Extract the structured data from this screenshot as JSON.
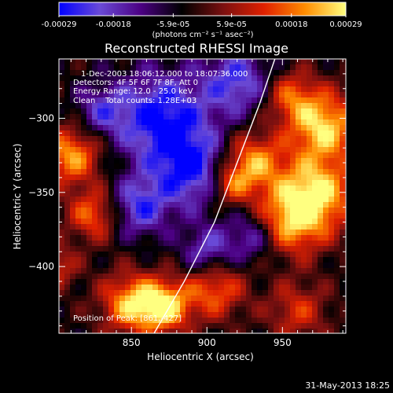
{
  "colorbar": {
    "tick_labels": [
      "-0.00029",
      "-0.00018",
      "-5.9e-05",
      "5.9e-05",
      "0.00018",
      "0.00029"
    ],
    "range": [
      -0.00029,
      0.00029
    ],
    "unit_label": "(photons cm⁻² s⁻¹ asec⁻²)",
    "colors": [
      "#0000ff",
      "#6a4ad6",
      "#4b0082",
      "#000000",
      "#7a1010",
      "#e02000",
      "#ff8c00",
      "#ffff80"
    ]
  },
  "chart_data": {
    "type": "heatmap",
    "title": "Reconstructed RHESSI Image",
    "xlabel": "Heliocentric X (arcsec)",
    "ylabel": "Heliocentric Y (arcsec)",
    "xlim": [
      802,
      992
    ],
    "ylim": [
      -445,
      -260
    ],
    "xticks": [
      850,
      900,
      950
    ],
    "yticks": [
      -300,
      -350,
      -400
    ],
    "annotations": [
      "1-Dec-2003 18:06:12.000 to 18:07:36.000",
      "Detectors: 4F 5F 6F 7F 8F, Att 0",
      "Energy Range: 12.0 - 25.0 keV",
      "Clean    Total counts: 1.28E+03"
    ],
    "position_label": "Position of Peak: [861,-427]",
    "peak": [
      861,
      -427
    ],
    "limb_curve": [
      [
        865,
        -445
      ],
      [
        885,
        -410
      ],
      [
        905,
        -370
      ],
      [
        920,
        -330
      ],
      [
        935,
        -290
      ],
      [
        945,
        -260
      ]
    ],
    "blobs": [
      {
        "x": 977,
        "y": -305,
        "v": 1.0,
        "s": 16
      },
      {
        "x": 972,
        "y": -350,
        "v": 1.0,
        "s": 18
      },
      {
        "x": 955,
        "y": -370,
        "v": 0.8,
        "s": 16
      },
      {
        "x": 930,
        "y": -330,
        "v": 0.85,
        "s": 14
      },
      {
        "x": 915,
        "y": -345,
        "v": 0.6,
        "s": 10
      },
      {
        "x": 850,
        "y": -425,
        "v": 0.9,
        "s": 14
      },
      {
        "x": 872,
        "y": -427,
        "v": 1.0,
        "s": 12
      },
      {
        "x": 905,
        "y": -415,
        "v": 0.7,
        "s": 14
      },
      {
        "x": 810,
        "y": -325,
        "v": 0.85,
        "s": 14
      },
      {
        "x": 825,
        "y": -365,
        "v": 0.7,
        "s": 12
      },
      {
        "x": 955,
        "y": -285,
        "v": 0.6,
        "s": 12
      },
      {
        "x": 800,
        "y": -400,
        "v": 0.5,
        "s": 10
      },
      {
        "x": 960,
        "y": -430,
        "v": 0.5,
        "s": 14
      },
      {
        "x": 870,
        "y": -300,
        "v": -0.9,
        "s": 22
      },
      {
        "x": 890,
        "y": -335,
        "v": -0.8,
        "s": 18
      },
      {
        "x": 855,
        "y": -360,
        "v": -0.7,
        "s": 14
      },
      {
        "x": 900,
        "y": -390,
        "v": -0.6,
        "s": 12
      },
      {
        "x": 920,
        "y": -275,
        "v": -0.7,
        "s": 16
      },
      {
        "x": 830,
        "y": -295,
        "v": -0.5,
        "s": 12
      },
      {
        "x": 930,
        "y": -380,
        "v": -0.55,
        "s": 12
      }
    ]
  },
  "footer": {
    "timestamp": "31-May-2013 18:25"
  }
}
